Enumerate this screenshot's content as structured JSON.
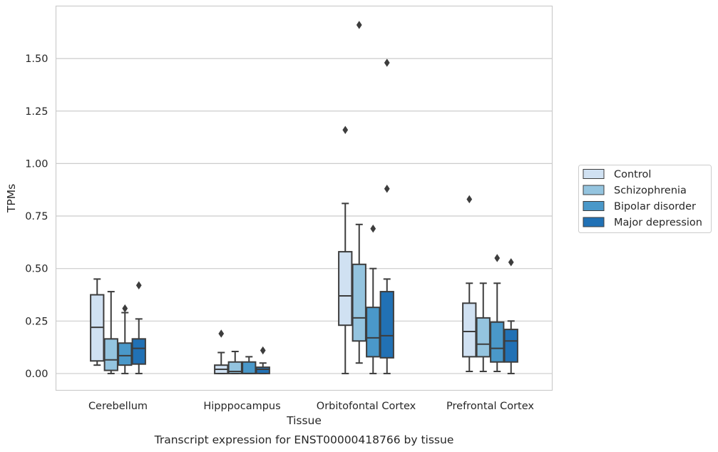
{
  "chart_data": {
    "type": "box",
    "title": "",
    "caption": "Transcript expression for ENST00000418766 by tissue",
    "xlabel": "Tissue",
    "ylabel": "TPMs",
    "ylim": [
      -0.08,
      1.75
    ],
    "yticks": [
      0.0,
      0.25,
      0.5,
      0.75,
      1.0,
      1.25,
      1.5
    ],
    "ytick_labels": [
      "0.00",
      "0.25",
      "0.50",
      "0.75",
      "1.00",
      "1.25",
      "1.50"
    ],
    "grid": "horizontal",
    "legend_position": "right",
    "categories": [
      "Cerebellum",
      "Hipppocampus",
      "Orbitofontal Cortex",
      "Prefrontal Cortex"
    ],
    "series": [
      {
        "name": "Control",
        "color": "#d0e1f2",
        "boxes": [
          {
            "whislo": 0.04,
            "q1": 0.06,
            "med": 0.22,
            "q3": 0.375,
            "whishi": 0.45,
            "fliers": []
          },
          {
            "whislo": 0.0,
            "q1": 0.0,
            "med": 0.02,
            "q3": 0.04,
            "whishi": 0.1,
            "fliers": [
              0.19
            ]
          },
          {
            "whislo": 0.0,
            "q1": 0.23,
            "med": 0.37,
            "q3": 0.58,
            "whishi": 0.81,
            "fliers": [
              1.16
            ]
          },
          {
            "whislo": 0.01,
            "q1": 0.08,
            "med": 0.2,
            "q3": 0.335,
            "whishi": 0.43,
            "fliers": [
              0.83
            ]
          }
        ]
      },
      {
        "name": "Schizophrenia",
        "color": "#94c4df",
        "boxes": [
          {
            "whislo": 0.0,
            "q1": 0.015,
            "med": 0.065,
            "q3": 0.165,
            "whishi": 0.39,
            "fliers": []
          },
          {
            "whislo": 0.0,
            "q1": 0.0,
            "med": 0.01,
            "q3": 0.055,
            "whishi": 0.105,
            "fliers": []
          },
          {
            "whislo": 0.05,
            "q1": 0.155,
            "med": 0.265,
            "q3": 0.52,
            "whishi": 0.71,
            "fliers": [
              1.66
            ]
          },
          {
            "whislo": 0.01,
            "q1": 0.08,
            "med": 0.14,
            "q3": 0.265,
            "whishi": 0.43,
            "fliers": []
          }
        ]
      },
      {
        "name": "Bipolar disorder",
        "color": "#4a98c9",
        "boxes": [
          {
            "whislo": 0.0,
            "q1": 0.04,
            "med": 0.085,
            "q3": 0.145,
            "whishi": 0.29,
            "fliers": [
              0.31
            ]
          },
          {
            "whislo": 0.0,
            "q1": 0.0,
            "med": 0.0,
            "q3": 0.055,
            "whishi": 0.08,
            "fliers": []
          },
          {
            "whislo": 0.0,
            "q1": 0.08,
            "med": 0.17,
            "q3": 0.315,
            "whishi": 0.5,
            "fliers": [
              0.69
            ]
          },
          {
            "whislo": 0.01,
            "q1": 0.055,
            "med": 0.12,
            "q3": 0.245,
            "whishi": 0.43,
            "fliers": [
              0.55
            ]
          }
        ]
      },
      {
        "name": "Major depression",
        "color": "#2171b5",
        "boxes": [
          {
            "whislo": 0.0,
            "q1": 0.045,
            "med": 0.12,
            "q3": 0.165,
            "whishi": 0.26,
            "fliers": [
              0.42
            ]
          },
          {
            "whislo": 0.0,
            "q1": 0.0,
            "med": 0.02,
            "q3": 0.03,
            "whishi": 0.05,
            "fliers": [
              0.11
            ]
          },
          {
            "whislo": 0.0,
            "q1": 0.075,
            "med": 0.18,
            "q3": 0.39,
            "whishi": 0.45,
            "fliers": [
              0.88,
              1.48
            ]
          },
          {
            "whislo": 0.0,
            "q1": 0.055,
            "med": 0.155,
            "q3": 0.21,
            "whishi": 0.25,
            "fliers": [
              0.53
            ]
          }
        ]
      }
    ]
  }
}
